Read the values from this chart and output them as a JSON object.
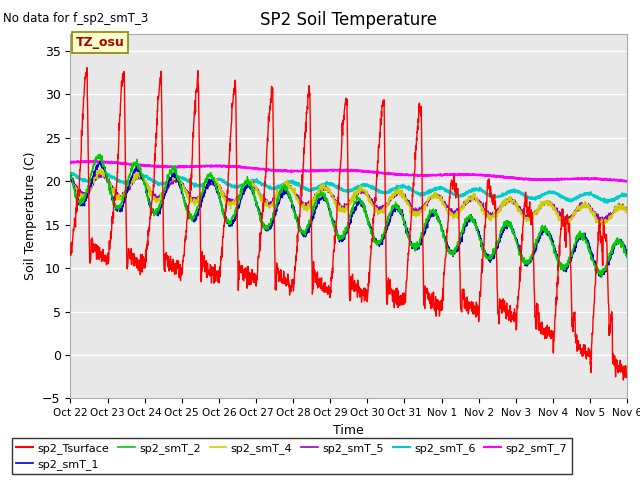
{
  "title": "SP2 Soil Temperature",
  "no_data_text": "No data for f_sp2_smT_3",
  "xlabel": "Time",
  "ylabel": "Soil Temperature (C)",
  "ylim": [
    -5,
    37
  ],
  "yticks": [
    -5,
    0,
    5,
    10,
    15,
    20,
    25,
    30,
    35
  ],
  "tz_label": "TZ_osu",
  "bg_color": "#e0e0e0",
  "plot_bg": "#e8e8e8",
  "x_tick_labels": [
    "Oct 22",
    "Oct 23",
    "Oct 24",
    "Oct 25",
    "Oct 26",
    "Oct 27",
    "Oct 28",
    "Oct 29",
    "Oct 30",
    "Oct 31",
    "Nov 1",
    "Nov 2",
    "Nov 3",
    "Nov 4",
    "Nov 5",
    "Nov 6"
  ],
  "series": {
    "sp2_Tsurface": {
      "color": "#ff0000",
      "linewidth": 1.0
    },
    "sp2_smT_1": {
      "color": "#0000cc",
      "linewidth": 1.0
    },
    "sp2_smT_2": {
      "color": "#00cc00",
      "linewidth": 1.0
    },
    "sp2_smT_4": {
      "color": "#cccc00",
      "linewidth": 1.0
    },
    "sp2_smT_5": {
      "color": "#9900cc",
      "linewidth": 1.0
    },
    "sp2_smT_6": {
      "color": "#00cccc",
      "linewidth": 1.5
    },
    "sp2_smT_7": {
      "color": "#ff00ff",
      "linewidth": 1.5
    }
  }
}
